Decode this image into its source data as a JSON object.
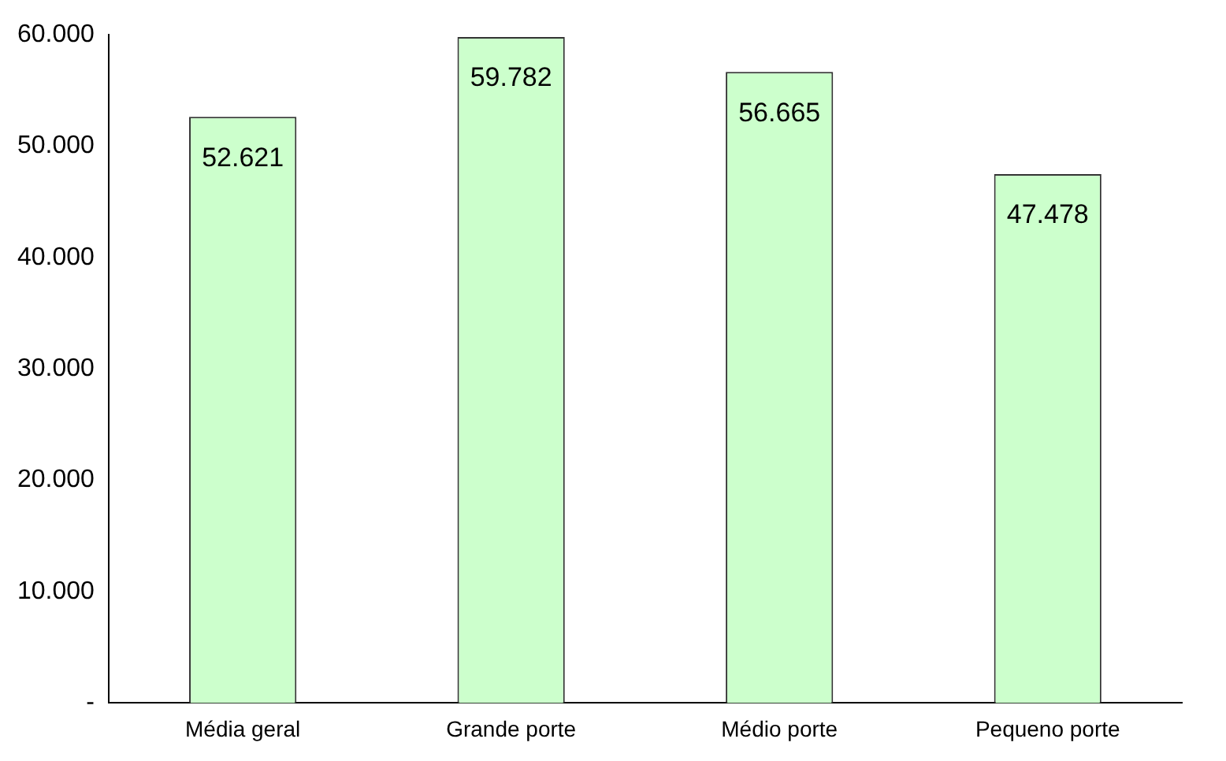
{
  "chart_data": {
    "type": "bar",
    "categories": [
      "Média geral",
      "Grande porte",
      "Médio porte",
      "Pequeno porte"
    ],
    "values": [
      52621,
      59782,
      56665,
      47478
    ],
    "value_labels": [
      "52.621",
      "59.782",
      "56.665",
      "47.478"
    ],
    "color": "#ccffcc",
    "ylim": [
      0,
      60000
    ],
    "yticks": [
      {
        "value": 0,
        "label": "-"
      },
      {
        "value": 10000,
        "label": "10.000"
      },
      {
        "value": 20000,
        "label": "20.000"
      },
      {
        "value": 30000,
        "label": "30.000"
      },
      {
        "value": 40000,
        "label": "40.000"
      },
      {
        "value": 50000,
        "label": "50.000"
      },
      {
        "value": 60000,
        "label": "60.000"
      }
    ],
    "grid": false,
    "legend": false
  }
}
